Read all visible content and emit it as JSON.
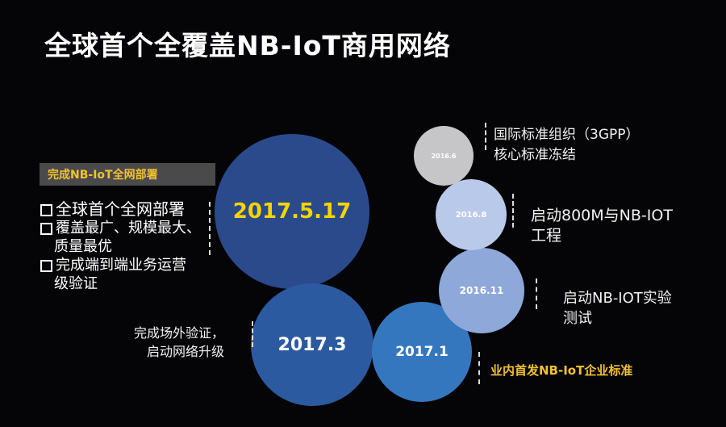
{
  "title": "全球首个全覆盖NB-IoT商用网络",
  "colors": {
    "accent": "#f2c230",
    "background": "#050507"
  },
  "milestones": [
    {
      "date": "2016.6",
      "text": [
        "国际标准组织（3GPP）",
        "核心标准冻结"
      ],
      "color": "#c6c6c8"
    },
    {
      "date": "2016.8",
      "text": [
        "启动800M与NB-IOT",
        "工程"
      ],
      "color": "#b9c9e9"
    },
    {
      "date": "2016.11",
      "text": [
        "启动NB-IOT实验",
        "测试"
      ],
      "color": "#8ea8da"
    },
    {
      "date": "2017.1",
      "text": [
        "业内首发NB-IoT企业标准"
      ],
      "color": "#3577bf"
    },
    {
      "date": "2017.3",
      "text": [
        "完成场外验证，",
        "启动网络升级"
      ],
      "color": "#2c5aa0"
    },
    {
      "date": "2017.5.17",
      "text": [],
      "color": "#2b4a8c"
    }
  ],
  "deployment": {
    "heading": "完成NB-IoT全网部署",
    "items": [
      [
        "全球首个全网部署"
      ],
      [
        "覆盖最广、规模最大、",
        "质量最优"
      ],
      [
        "完成端到端业务运营",
        "级验证"
      ]
    ]
  }
}
